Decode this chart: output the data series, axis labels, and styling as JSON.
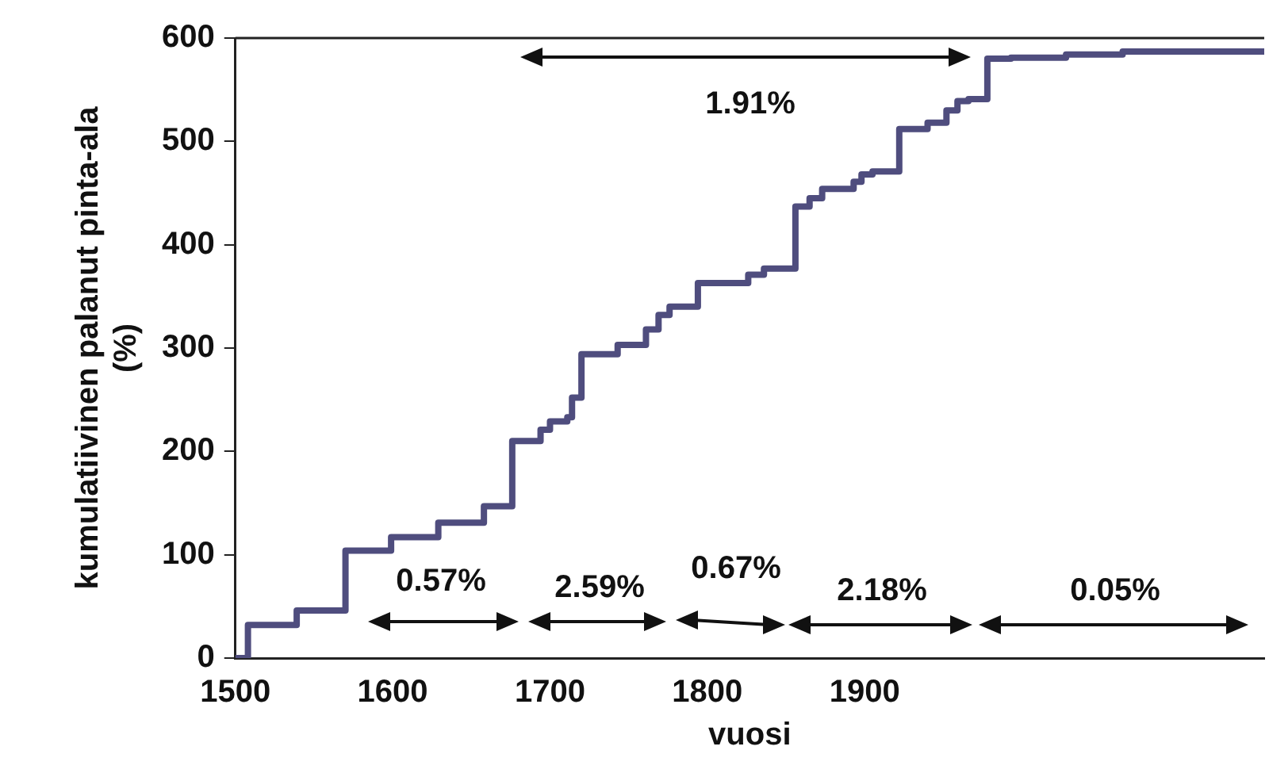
{
  "chart_data": {
    "type": "step",
    "xlabel": "vuosi",
    "ylabel": "kumulatiivinen palanut pinta-ala (%)",
    "x": [
      1500,
      1508,
      1539,
      1570,
      1599,
      1629,
      1658,
      1676,
      1694,
      1700,
      1711,
      1714,
      1720,
      1743,
      1761,
      1769,
      1776,
      1794,
      1826,
      1836,
      1856,
      1865,
      1873,
      1893,
      1898,
      1905,
      1922,
      1940,
      1952,
      1959,
      1966,
      1978,
      1993,
      2028,
      2064,
      2154
    ],
    "series": [
      {
        "color": "#4f4d7e",
        "values": [
          0,
          32,
          46,
          104,
          117,
          131,
          147,
          210,
          221,
          229,
          233,
          252,
          294,
          303,
          318,
          332,
          340,
          363,
          371,
          377,
          437,
          445,
          454,
          461,
          468,
          471,
          512,
          518,
          530,
          539,
          541,
          580,
          581,
          584,
          587,
          587
        ]
      }
    ],
    "xlim": [
      1500,
      2154
    ],
    "xticks": [
      1500,
      1600,
      1700,
      1800,
      1900
    ],
    "ylim": [
      0,
      600
    ],
    "yticks": [
      0,
      100,
      200,
      300,
      400,
      500,
      600
    ],
    "grid": false,
    "legend": false,
    "marker": "none",
    "line_style": "solid",
    "annotations": [
      "0.57%",
      "2.59%",
      "0.67%",
      "2.18%",
      "0.05%",
      "1.91%"
    ]
  }
}
